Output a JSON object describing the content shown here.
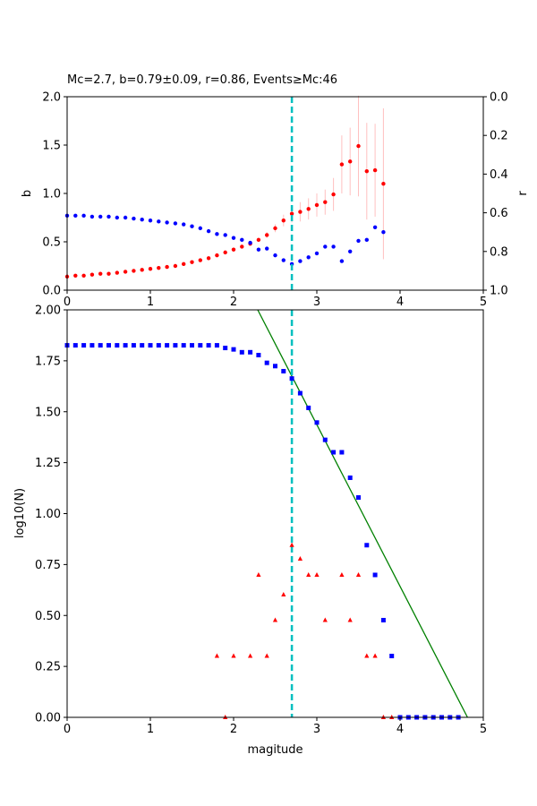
{
  "colors": {
    "b_series": "#ff0000",
    "r_series": "#0000ff",
    "errorbar": "#ffc0c0",
    "mc_line": "#00bfbf",
    "cumulative": "#0000ff",
    "noncumulative": "#ff0000",
    "fit_line": "#008000"
  },
  "chart_data": [
    {
      "type": "scatter",
      "title": "Mc=2.7, b=0.79±0.09, r=0.86, Events≥Mc:46",
      "xlabel": "",
      "ylabel": "b",
      "ylabel_right": "r",
      "xlim": [
        0,
        5
      ],
      "ylim": [
        0,
        2
      ],
      "ylim_right_inverted": [
        1,
        0
      ],
      "x_ticks": [
        "0",
        "1",
        "2",
        "3",
        "4",
        "5"
      ],
      "y_ticks": [
        "0.0",
        "0.5",
        "1.0",
        "1.5",
        "2.0"
      ],
      "y_ticks_right": [
        "0.0",
        "0.2",
        "0.4",
        "0.6",
        "0.8",
        "1.0"
      ],
      "grid": false,
      "vertical_line_x": 2.7,
      "series": [
        {
          "axis": "left",
          "x": [
            0.0,
            0.1,
            0.2,
            0.3,
            0.4,
            0.5,
            0.6,
            0.7,
            0.8,
            0.9,
            1.0,
            1.1,
            1.2,
            1.3,
            1.4,
            1.5,
            1.6,
            1.7,
            1.8,
            1.9,
            2.0,
            2.1,
            2.2,
            2.3,
            2.4,
            2.5,
            2.6,
            2.7,
            2.8,
            2.9,
            3.0,
            3.1,
            3.2,
            3.3,
            3.4,
            3.5,
            3.6,
            3.7,
            3.8
          ],
          "values": [
            0.14,
            0.15,
            0.15,
            0.16,
            0.17,
            0.17,
            0.18,
            0.19,
            0.2,
            0.21,
            0.22,
            0.23,
            0.24,
            0.25,
            0.27,
            0.29,
            0.31,
            0.33,
            0.36,
            0.39,
            0.42,
            0.45,
            0.48,
            0.52,
            0.57,
            0.64,
            0.72,
            0.79,
            0.81,
            0.84,
            0.88,
            0.91,
            0.99,
            1.3,
            1.33,
            1.49,
            1.23,
            1.24,
            1.1
          ],
          "errors": [
            0.01,
            0.01,
            0.01,
            0.01,
            0.01,
            0.01,
            0.01,
            0.01,
            0.01,
            0.01,
            0.01,
            0.01,
            0.01,
            0.01,
            0.01,
            0.01,
            0.01,
            0.01,
            0.01,
            0.01,
            0.02,
            0.02,
            0.02,
            0.02,
            0.03,
            0.04,
            0.06,
            0.09,
            0.1,
            0.11,
            0.12,
            0.13,
            0.17,
            0.3,
            0.35,
            0.52,
            0.5,
            0.48,
            0.78
          ]
        },
        {
          "axis": "right",
          "x": [
            0.0,
            0.1,
            0.2,
            0.3,
            0.4,
            0.5,
            0.6,
            0.7,
            0.8,
            0.9,
            1.0,
            1.1,
            1.2,
            1.3,
            1.4,
            1.5,
            1.6,
            1.7,
            1.8,
            1.9,
            2.0,
            2.1,
            2.2,
            2.3,
            2.4,
            2.5,
            2.6,
            2.7,
            2.8,
            2.9,
            3.0,
            3.1,
            3.2,
            3.3,
            3.4,
            3.5,
            3.6,
            3.7,
            3.8
          ],
          "values": [
            0.615,
            0.615,
            0.615,
            0.62,
            0.62,
            0.62,
            0.625,
            0.625,
            0.63,
            0.635,
            0.64,
            0.645,
            0.65,
            0.655,
            0.66,
            0.67,
            0.68,
            0.695,
            0.71,
            0.715,
            0.73,
            0.74,
            0.755,
            0.79,
            0.785,
            0.82,
            0.845,
            0.865,
            0.85,
            0.83,
            0.81,
            0.775,
            0.775,
            0.85,
            0.8,
            0.745,
            0.74,
            0.675,
            0.7
          ]
        }
      ]
    },
    {
      "type": "scatter",
      "title": "",
      "xlabel": "magitude",
      "ylabel": "log10(N)",
      "xlim": [
        0,
        5
      ],
      "ylim": [
        0,
        2
      ],
      "x_ticks": [
        "0",
        "1",
        "2",
        "3",
        "4",
        "5"
      ],
      "y_ticks": [
        "0.00",
        "0.25",
        "0.50",
        "0.75",
        "1.00",
        "1.25",
        "1.50",
        "1.75",
        "2.00"
      ],
      "grid": false,
      "vertical_line_x": 2.7,
      "series": [
        {
          "marker": "square",
          "x": [
            0.0,
            0.1,
            0.2,
            0.3,
            0.4,
            0.5,
            0.6,
            0.7,
            0.8,
            0.9,
            1.0,
            1.1,
            1.2,
            1.3,
            1.4,
            1.5,
            1.6,
            1.7,
            1.8,
            1.9,
            2.0,
            2.1,
            2.2,
            2.3,
            2.4,
            2.5,
            2.6,
            2.7,
            2.8,
            2.9,
            3.0,
            3.1,
            3.2,
            3.3,
            3.4,
            3.5,
            3.6,
            3.7,
            3.8,
            3.9,
            4.0,
            4.1,
            4.2,
            4.3,
            4.4,
            4.5,
            4.6,
            4.7
          ],
          "values": [
            1.826,
            1.826,
            1.826,
            1.826,
            1.826,
            1.826,
            1.826,
            1.826,
            1.826,
            1.826,
            1.826,
            1.826,
            1.826,
            1.826,
            1.826,
            1.826,
            1.826,
            1.826,
            1.826,
            1.813,
            1.806,
            1.792,
            1.792,
            1.778,
            1.74,
            1.724,
            1.699,
            1.663,
            1.591,
            1.519,
            1.447,
            1.362,
            1.301,
            1.301,
            1.176,
            1.079,
            0.845,
            0.699,
            0.477,
            0.301,
            0.0,
            0.0,
            0.0,
            0.0,
            0.0,
            0.0,
            0.0,
            0.0
          ]
        },
        {
          "marker": "triangle",
          "x": [
            1.8,
            1.9,
            2.0,
            2.2,
            2.3,
            2.4,
            2.5,
            2.6,
            2.7,
            2.8,
            2.9,
            3.0,
            3.1,
            3.3,
            3.4,
            3.5,
            3.6,
            3.7,
            3.8,
            3.9
          ],
          "values": [
            0.301,
            0.0,
            0.301,
            0.301,
            0.699,
            0.301,
            0.477,
            0.602,
            0.845,
            0.778,
            0.699,
            0.699,
            0.477,
            0.699,
            0.477,
            0.699,
            0.301,
            0.301,
            0.0,
            0.0
          ]
        },
        {
          "type": "line",
          "x": [
            2.29,
            4.81
          ],
          "values": [
            2.0,
            0.0
          ]
        }
      ]
    }
  ]
}
